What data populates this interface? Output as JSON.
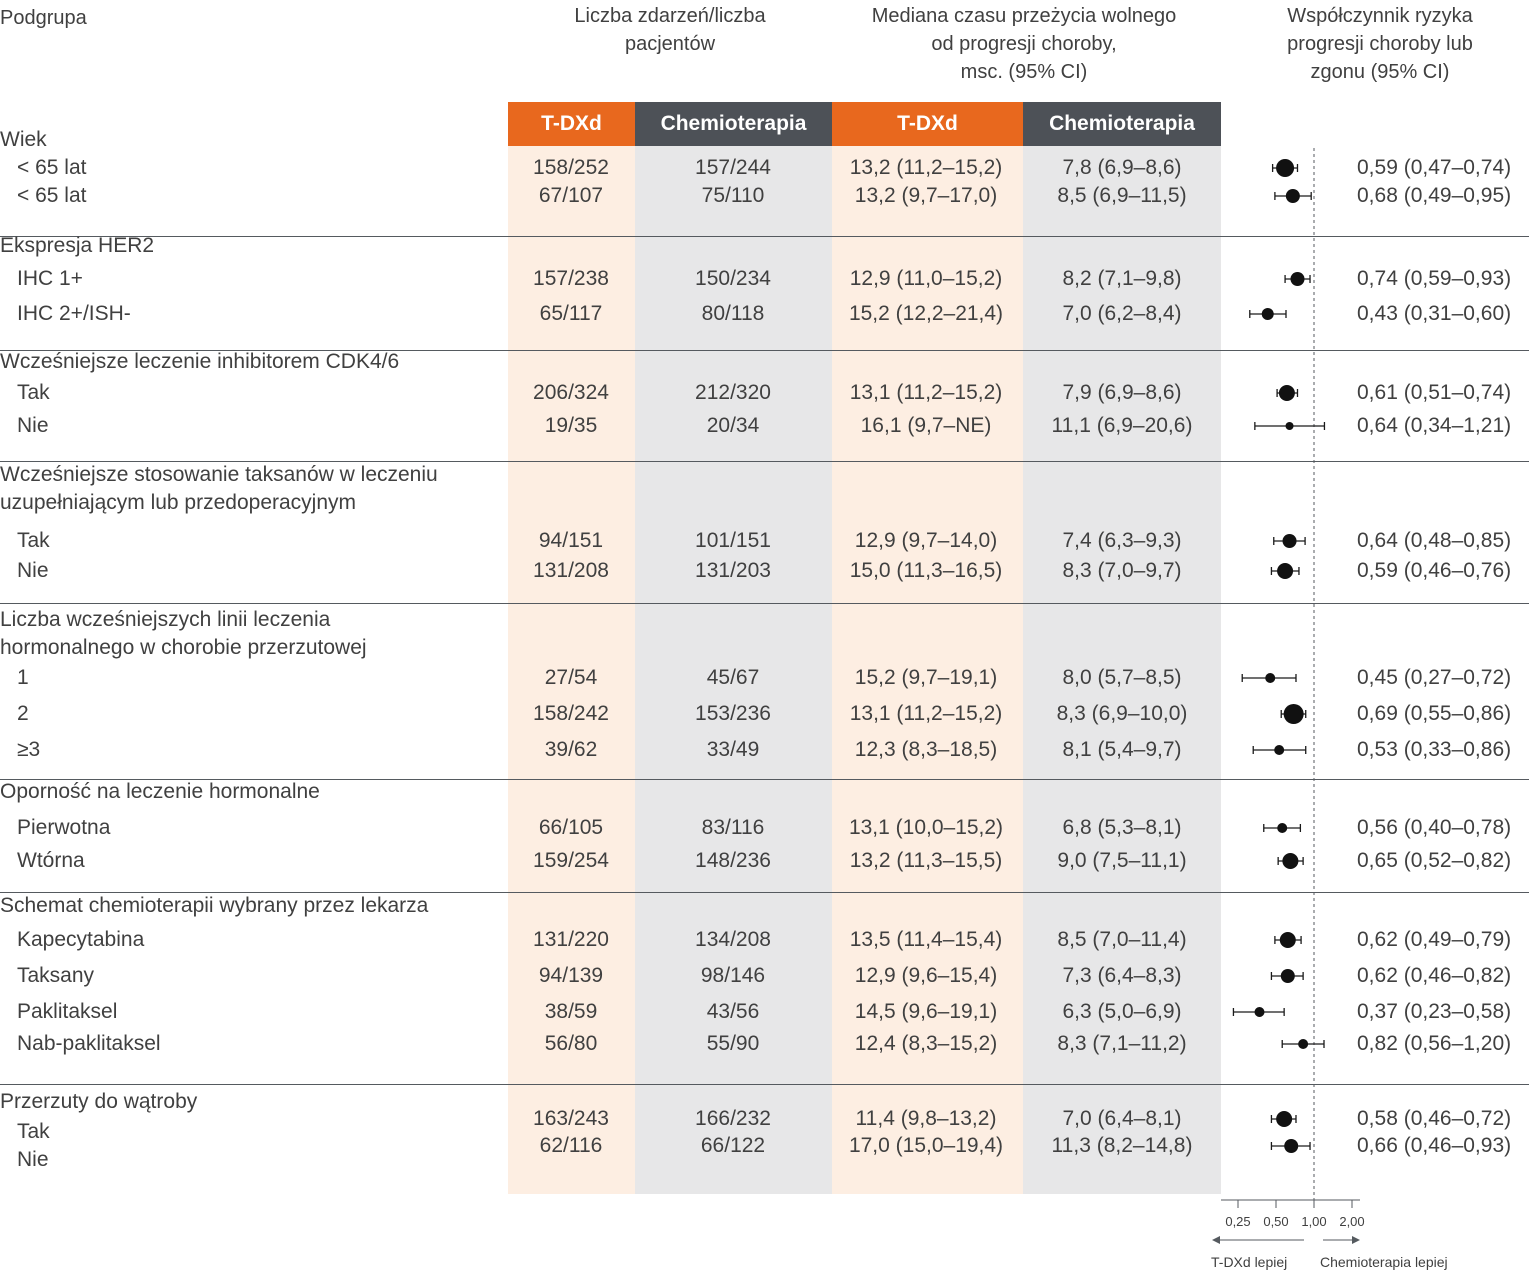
{
  "headers": {
    "subgroup": "Podgrupa",
    "events": [
      "Liczba zdarzeń/liczba",
      "pacjentów"
    ],
    "median": [
      "Mediana czasu przeżycia wolnego",
      "od progresji choroby,",
      "msc. (95% CI)"
    ],
    "hr": [
      "Współczynnik ryzyka",
      "progresji choroby lub",
      "zgonu (95% CI)"
    ],
    "tdxd": "T-DXd",
    "chemo": "Chemioterapia"
  },
  "axis": {
    "ticks": [
      "0,25",
      "0,50",
      "1,00",
      "2,00"
    ],
    "tick_values": [
      0.25,
      0.5,
      1.0,
      2.0
    ],
    "scale": "log",
    "left_label": "T-DXd lepiej",
    "right_label": "Chemioterapia lepiej"
  },
  "colors": {
    "tdxd": "#e8681e",
    "chemo": "#4d5157",
    "tdxd_bg": "#fdeee2",
    "chemo_bg": "#e7e7e8"
  },
  "chart_data": {
    "type": "forest",
    "reference_line": 1.0,
    "groups": [
      {
        "title": [
          "Wiek"
        ],
        "rows": [
          {
            "label": "< 65 lat",
            "tdxd_events": "158/252",
            "chemo_events": "157/244",
            "tdxd_median": "13,2 (11,2–15,2)",
            "chemo_median": "7,8 (6,9–8,6)",
            "hr_text": "0,59 (0,47–0,74)",
            "hr": 0.59,
            "lo": 0.47,
            "hi": 0.74
          },
          {
            "label": "< 65 lat",
            "tdxd_events": "67/107",
            "chemo_events": "75/110",
            "tdxd_median": "13,2 (9,7–17,0)",
            "chemo_median": "8,5 (6,9–11,5)",
            "hr_text": "0,68 (0,49–0,95)",
            "hr": 0.68,
            "lo": 0.49,
            "hi": 0.95
          }
        ]
      },
      {
        "title": [
          "Ekspresja HER2"
        ],
        "rows": [
          {
            "label": "IHC 1+",
            "tdxd_events": "157/238",
            "chemo_events": "150/234",
            "tdxd_median": "12,9 (11,0–15,2)",
            "chemo_median": "8,2 (7,1–9,8)",
            "hr_text": "0,74 (0,59–0,93)",
            "hr": 0.74,
            "lo": 0.59,
            "hi": 0.93
          },
          {
            "label": "IHC 2+/ISH-",
            "tdxd_events": "65/117",
            "chemo_events": "80/118",
            "tdxd_median": "15,2 (12,2–21,4)",
            "chemo_median": "7,0 (6,2–8,4)",
            "hr_text": "0,43 (0,31–0,60)",
            "hr": 0.43,
            "lo": 0.31,
            "hi": 0.6
          }
        ]
      },
      {
        "title": [
          "Wcześniejsze leczenie inhibitorem CDK4/6"
        ],
        "rows": [
          {
            "label": "Tak",
            "tdxd_events": "206/324",
            "chemo_events": "212/320",
            "tdxd_median": "13,1 (11,2–15,2)",
            "chemo_median": "7,9 (6,9–8,6)",
            "hr_text": "0,61 (0,51–0,74)",
            "hr": 0.61,
            "lo": 0.51,
            "hi": 0.74
          },
          {
            "label": "Nie",
            "tdxd_events": "19/35",
            "chemo_events": "20/34",
            "tdxd_median": "16,1 (9,7–NE)",
            "chemo_median": "11,1 (6,9–20,6)",
            "hr_text": "0,64 (0,34–1,21)",
            "hr": 0.64,
            "lo": 0.34,
            "hi": 1.21
          }
        ]
      },
      {
        "title": [
          "Wcześniejsze stosowanie taksanów w leczeniu",
          "uzupełniającym lub przedoperacyjnym"
        ],
        "rows": [
          {
            "label": "Tak",
            "tdxd_events": "94/151",
            "chemo_events": "101/151",
            "tdxd_median": "12,9 (9,7–14,0)",
            "chemo_median": "7,4 (6,3–9,3)",
            "hr_text": "0,64 (0,48–0,85)",
            "hr": 0.64,
            "lo": 0.48,
            "hi": 0.85
          },
          {
            "label": "Nie",
            "tdxd_events": "131/208",
            "chemo_events": "131/203",
            "tdxd_median": "15,0 (11,3–16,5)",
            "chemo_median": "8,3 (7,0–9,7)",
            "hr_text": "0,59 (0,46–0,76)",
            "hr": 0.59,
            "lo": 0.46,
            "hi": 0.76
          }
        ]
      },
      {
        "title": [
          "Liczba wcześniejszych linii leczenia",
          "hormonalnego w chorobie przerzutowej"
        ],
        "rows": [
          {
            "label": "1",
            "tdxd_events": "27/54",
            "chemo_events": "45/67",
            "tdxd_median": "15,2 (9,7–19,1)",
            "chemo_median": "8,0 (5,7–8,5)",
            "hr_text": "0,45 (0,27–0,72)",
            "hr": 0.45,
            "lo": 0.27,
            "hi": 0.72
          },
          {
            "label": "2",
            "tdxd_events": "158/242",
            "chemo_events": "153/236",
            "tdxd_median": "13,1 (11,2–15,2)",
            "chemo_median": "8,3 (6,9–10,0)",
            "hr_text": "0,69 (0,55–0,86)",
            "hr": 0.69,
            "lo": 0.55,
            "hi": 0.86
          },
          {
            "label": "≥3",
            "tdxd_events": "39/62",
            "chemo_events": "33/49",
            "tdxd_median": "12,3 (8,3–18,5)",
            "chemo_median": "8,1 (5,4–9,7)",
            "hr_text": "0,53 (0,33–0,86)",
            "hr": 0.53,
            "lo": 0.33,
            "hi": 0.86
          }
        ]
      },
      {
        "title": [
          "Oporność na leczenie hormonalne"
        ],
        "rows": [
          {
            "label": "Pierwotna",
            "tdxd_events": "66/105",
            "chemo_events": "83/116",
            "tdxd_median": "13,1 (10,0–15,2)",
            "chemo_median": "6,8 (5,3–8,1)",
            "hr_text": "0,56 (0,40–0,78)",
            "hr": 0.56,
            "lo": 0.4,
            "hi": 0.78
          },
          {
            "label": "Wtórna",
            "tdxd_events": "159/254",
            "chemo_events": "148/236",
            "tdxd_median": "13,2 (11,3–15,5)",
            "chemo_median": "9,0 (7,5–11,1)",
            "hr_text": "0,65 (0,52–0,82)",
            "hr": 0.65,
            "lo": 0.52,
            "hi": 0.82
          }
        ]
      },
      {
        "title": [
          "Schemat chemioterapii wybrany przez lekarza"
        ],
        "rows": [
          {
            "label": "Kapecytabina",
            "tdxd_events": "131/220",
            "chemo_events": "134/208",
            "tdxd_median": "13,5 (11,4–15,4)",
            "chemo_median": "8,5 (7,0–11,4)",
            "hr_text": "0,62 (0,49–0,79)",
            "hr": 0.62,
            "lo": 0.49,
            "hi": 0.79
          },
          {
            "label": "Taksany",
            "tdxd_events": "94/139",
            "chemo_events": "98/146",
            "tdxd_median": "12,9 (9,6–15,4)",
            "chemo_median": "7,3 (6,4–8,3)",
            "hr_text": "0,62 (0,46–0,82)",
            "hr": 0.62,
            "lo": 0.46,
            "hi": 0.82
          },
          {
            "label": "Paklitaksel",
            "tdxd_events": "38/59",
            "chemo_events": "43/56",
            "tdxd_median": "14,5 (9,6–19,1)",
            "chemo_median": "6,3 (5,0–6,9)",
            "hr_text": "0,37 (0,23–0,58)",
            "hr": 0.37,
            "lo": 0.23,
            "hi": 0.58
          },
          {
            "label": "Nab-paklitaksel",
            "tdxd_events": "56/80",
            "chemo_events": "55/90",
            "tdxd_median": "12,4 (8,3–15,2)",
            "chemo_median": "8,3 (7,1–11,2)",
            "hr_text": "0,82 (0,56–1,20)",
            "hr": 0.82,
            "lo": 0.56,
            "hi": 1.2
          }
        ]
      },
      {
        "title": [
          "Przerzuty do wątroby"
        ],
        "rows": [
          {
            "label": "Tak",
            "tdxd_events": "163/243",
            "chemo_events": "166/232",
            "tdxd_median": "11,4 (9,8–13,2)",
            "chemo_median": "7,0 (6,4–8,1)",
            "hr_text": "0,58 (0,46–0,72)",
            "hr": 0.58,
            "lo": 0.46,
            "hi": 0.72
          },
          {
            "label": "Nie",
            "tdxd_events": "62/116",
            "chemo_events": "66/122",
            "tdxd_median": "17,0 (15,0–19,4)",
            "chemo_median": "11,3 (8,2–14,8)",
            "hr_text": "0,66 (0,46–0,93)",
            "hr": 0.66,
            "lo": 0.46,
            "hi": 0.93
          }
        ]
      }
    ]
  }
}
